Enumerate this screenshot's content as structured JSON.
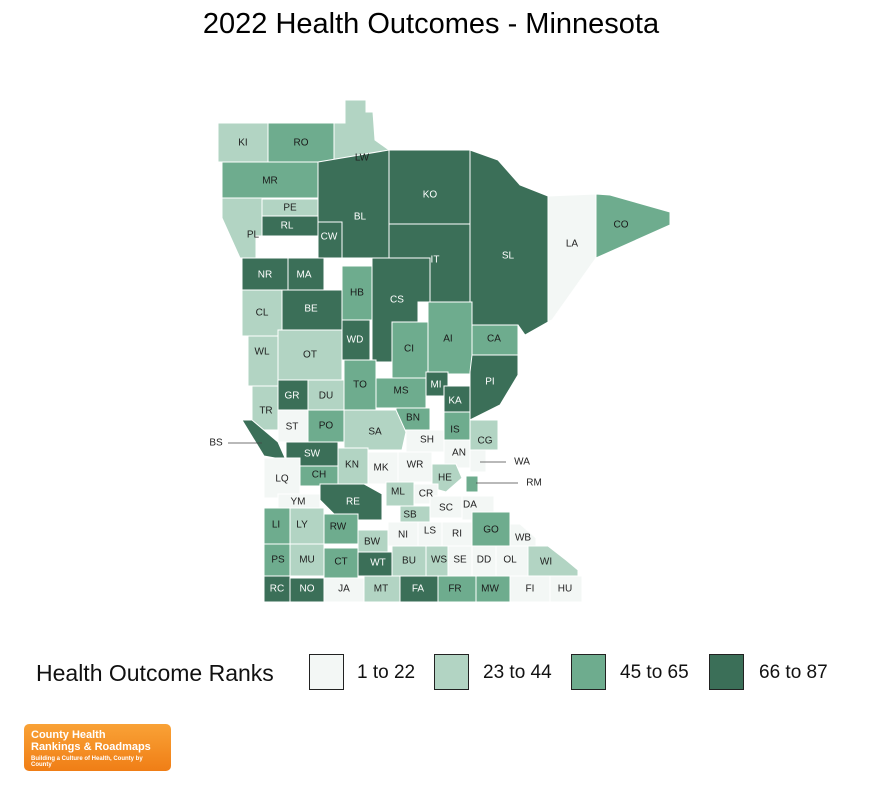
{
  "title": "2022 Health Outcomes - Minnesota",
  "legend": {
    "title": "Health Outcome Ranks",
    "bins": [
      {
        "label": "1 to 22",
        "color": "#f3f7f5"
      },
      {
        "label": "23 to 44",
        "color": "#b2d4c3"
      },
      {
        "label": "45 to 65",
        "color": "#6eac8e"
      },
      {
        "label": "66 to 87",
        "color": "#3b6f58"
      }
    ]
  },
  "logo": {
    "line1": "County Health",
    "line2": "Rankings & Roadmaps",
    "tagline": "Building a Culture of Health, County by County"
  },
  "counties": [
    {
      "abbr": "KI",
      "bin": 1
    },
    {
      "abbr": "RO",
      "bin": 2
    },
    {
      "abbr": "LW",
      "bin": 1
    },
    {
      "abbr": "MR",
      "bin": 2
    },
    {
      "abbr": "PE",
      "bin": 1
    },
    {
      "abbr": "RL",
      "bin": 3
    },
    {
      "abbr": "PL",
      "bin": 1
    },
    {
      "abbr": "BL",
      "bin": 3
    },
    {
      "abbr": "CW",
      "bin": 3
    },
    {
      "abbr": "KO",
      "bin": 3
    },
    {
      "abbr": "SL",
      "bin": 3
    },
    {
      "abbr": "LA",
      "bin": 0
    },
    {
      "abbr": "CO",
      "bin": 2
    },
    {
      "abbr": "IT",
      "bin": 3
    },
    {
      "abbr": "NR",
      "bin": 3
    },
    {
      "abbr": "MA",
      "bin": 3
    },
    {
      "abbr": "HB",
      "bin": 2
    },
    {
      "abbr": "CS",
      "bin": 3
    },
    {
      "abbr": "CL",
      "bin": 1
    },
    {
      "abbr": "BE",
      "bin": 3
    },
    {
      "abbr": "WL",
      "bin": 1
    },
    {
      "abbr": "OT",
      "bin": 1
    },
    {
      "abbr": "WD",
      "bin": 3
    },
    {
      "abbr": "CI",
      "bin": 2
    },
    {
      "abbr": "AI",
      "bin": 2
    },
    {
      "abbr": "CA",
      "bin": 2
    },
    {
      "abbr": "TO",
      "bin": 2
    },
    {
      "abbr": "MS",
      "bin": 2
    },
    {
      "abbr": "MI",
      "bin": 3
    },
    {
      "abbr": "PI",
      "bin": 3
    },
    {
      "abbr": "GR",
      "bin": 3
    },
    {
      "abbr": "DU",
      "bin": 1
    },
    {
      "abbr": "KA",
      "bin": 3
    },
    {
      "abbr": "BN",
      "bin": 2
    },
    {
      "abbr": "TR",
      "bin": 1
    },
    {
      "abbr": "ST",
      "bin": 0
    },
    {
      "abbr": "PO",
      "bin": 2
    },
    {
      "abbr": "SA",
      "bin": 1
    },
    {
      "abbr": "IS",
      "bin": 2
    },
    {
      "abbr": "CG",
      "bin": 1
    },
    {
      "abbr": "SH",
      "bin": 0
    },
    {
      "abbr": "BS",
      "bin": 3
    },
    {
      "abbr": "SW",
      "bin": 3
    },
    {
      "abbr": "AN",
      "bin": 0
    },
    {
      "abbr": "WA",
      "bin": 0
    },
    {
      "abbr": "KN",
      "bin": 1
    },
    {
      "abbr": "MK",
      "bin": 0
    },
    {
      "abbr": "WR",
      "bin": 0
    },
    {
      "abbr": "HE",
      "bin": 1
    },
    {
      "abbr": "RM",
      "bin": 2
    },
    {
      "abbr": "LQ",
      "bin": 0
    },
    {
      "abbr": "CH",
      "bin": 2
    },
    {
      "abbr": "ML",
      "bin": 1
    },
    {
      "abbr": "CR",
      "bin": 0
    },
    {
      "abbr": "YM",
      "bin": 0
    },
    {
      "abbr": "RE",
      "bin": 3
    },
    {
      "abbr": "SB",
      "bin": 1
    },
    {
      "abbr": "SC",
      "bin": 0
    },
    {
      "abbr": "DA",
      "bin": 0
    },
    {
      "abbr": "LI",
      "bin": 2
    },
    {
      "abbr": "LY",
      "bin": 1
    },
    {
      "abbr": "RW",
      "bin": 2
    },
    {
      "abbr": "LS",
      "bin": 0
    },
    {
      "abbr": "RI",
      "bin": 0
    },
    {
      "abbr": "GO",
      "bin": 2
    },
    {
      "abbr": "NI",
      "bin": 0
    },
    {
      "abbr": "BW",
      "bin": 1
    },
    {
      "abbr": "WB",
      "bin": 0
    },
    {
      "abbr": "PS",
      "bin": 2
    },
    {
      "abbr": "MU",
      "bin": 1
    },
    {
      "abbr": "CT",
      "bin": 2
    },
    {
      "abbr": "WT",
      "bin": 3
    },
    {
      "abbr": "BU",
      "bin": 1
    },
    {
      "abbr": "WS",
      "bin": 1
    },
    {
      "abbr": "SE",
      "bin": 0
    },
    {
      "abbr": "DD",
      "bin": 0
    },
    {
      "abbr": "OL",
      "bin": 0
    },
    {
      "abbr": "WI",
      "bin": 1
    },
    {
      "abbr": "RC",
      "bin": 3
    },
    {
      "abbr": "NO",
      "bin": 3
    },
    {
      "abbr": "JA",
      "bin": 0
    },
    {
      "abbr": "MT",
      "bin": 1
    },
    {
      "abbr": "FA",
      "bin": 3
    },
    {
      "abbr": "FR",
      "bin": 2
    },
    {
      "abbr": "MW",
      "bin": 2
    },
    {
      "abbr": "FI",
      "bin": 0
    },
    {
      "abbr": "HU",
      "bin": 0
    }
  ]
}
